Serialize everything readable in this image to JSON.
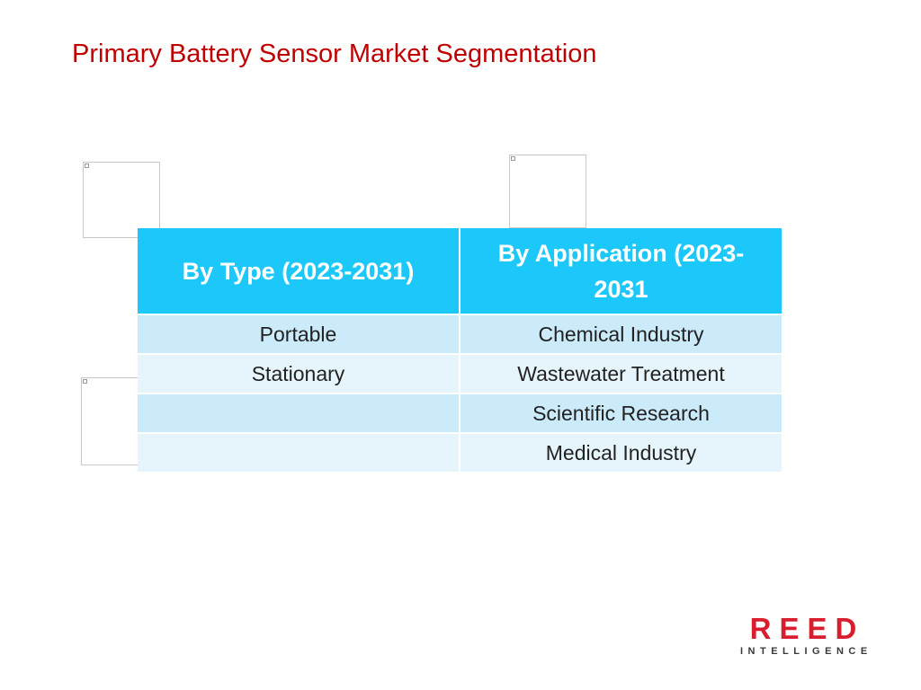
{
  "slide": {
    "title": "Primary Battery Sensor Market Segmentation"
  },
  "table": {
    "headers": [
      "By Type (2023-2031)",
      "By Application (2023-2031"
    ],
    "rows": [
      [
        "Portable",
        "Chemical Industry"
      ],
      [
        "Stationary",
        "Wastewater Treatment"
      ],
      [
        "",
        "Scientific Research"
      ],
      [
        "",
        "Medical Industry"
      ]
    ]
  },
  "logo": {
    "main": "REED",
    "sub": "INTELLIGENCE"
  },
  "colors": {
    "title": "#c00000",
    "header_bg": "#1cc7f9",
    "row_odd": "#cbeafa",
    "row_even": "#e6f5fc",
    "logo_red": "#d81e2e"
  },
  "icons": [
    "broken-image-icon"
  ]
}
